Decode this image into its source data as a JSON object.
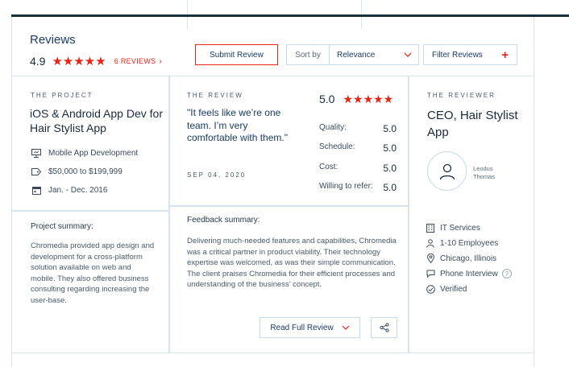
{
  "header": {
    "title": "Reviews",
    "rating": "4.9",
    "stars": "★★★★★",
    "review_count": "6 REVIEWS",
    "review_count_chevron": "›"
  },
  "toolbar": {
    "submit_label": "Submit Review",
    "sort_label": "Sort by",
    "sort_value": "Relevance",
    "filter_label": "Filter Reviews",
    "filter_plus": "+"
  },
  "project": {
    "eyebrow": "THE PROJECT",
    "title": "iOS & Android App Dev for Hair Stylist App",
    "service": "Mobile App Development",
    "budget": "$50,000 to $199,999",
    "dates": "Jan. - Dec. 2016",
    "summary_label": "Project summary:",
    "summary": "Chromedia provided app design and development for a cross-platform solution available on web and mobile. They also offered business consulting regarding increasing the user-base."
  },
  "review": {
    "eyebrow": "THE REVIEW",
    "quote": "\"It feels like we’re one team. I’m very comfortable with them.\"",
    "date": "SEP 04, 2020",
    "overall": "5.0",
    "stars": "★★★★★",
    "scores": [
      {
        "label": "Quality:",
        "value": "5.0"
      },
      {
        "label": "Schedule:",
        "value": "5.0"
      },
      {
        "label": "Cost:",
        "value": "5.0"
      },
      {
        "label": "Willing to refer:",
        "value": "5.0"
      }
    ],
    "feedback_label": "Feedback summary:",
    "feedback": "Delivering much-needed features and capabilities, Chromedia was a critical partner in product viability. Their technology expertise was welcomed, as was their simple communication. The client praises Chromedia for their efficient processes and understanding of the business’ concept.",
    "read_full_label": "Read Full Review"
  },
  "reviewer": {
    "eyebrow": "THE REVIEWER",
    "title": "CEO, Hair Stylist App",
    "name_first": "Leodus",
    "name_last": "Thomas",
    "industry": "IT Services",
    "employees": "1-10 Employees",
    "location": "Chicago, Illinois",
    "interview": "Phone Interview",
    "help_glyph": "?",
    "verified": "Verified"
  },
  "colors": {
    "accent": "#e62415",
    "navy": "#1a3b63",
    "border": "#d7e4ee"
  }
}
